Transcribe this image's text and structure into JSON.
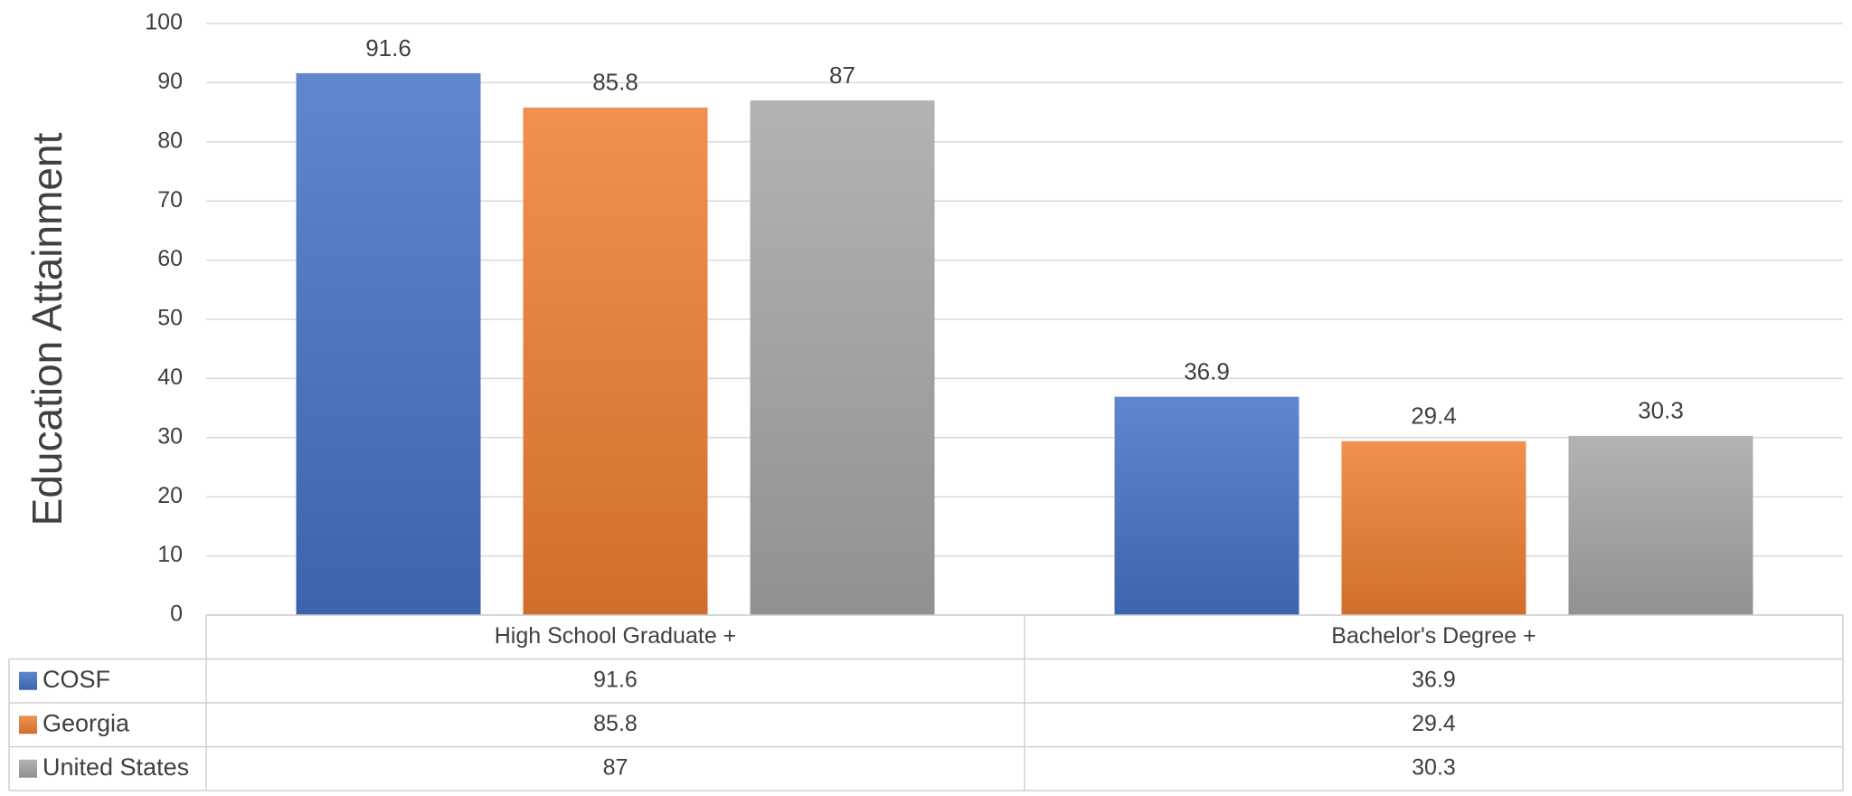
{
  "chart_data": {
    "type": "bar",
    "y_axis_label": "Education Attainment",
    "categories": [
      "High School Graduate +",
      "Bachelor's Degree +"
    ],
    "series": [
      {
        "name": "COSF",
        "color": "#4472c4",
        "values": [
          91.6,
          36.9
        ]
      },
      {
        "name": "Georgia",
        "color": "#ed7d31",
        "values": [
          85.8,
          29.4
        ]
      },
      {
        "name": "United States",
        "color": "#a5a5a5",
        "values": [
          87,
          30.3
        ]
      }
    ],
    "ylim": [
      0,
      100
    ],
    "yticks": [
      0,
      10,
      20,
      30,
      40,
      50,
      60,
      70,
      80,
      90,
      100
    ],
    "grid": true
  }
}
